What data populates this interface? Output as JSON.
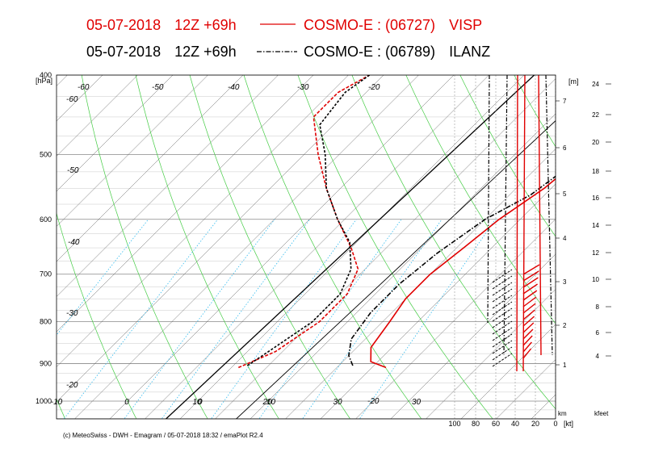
{
  "header": {
    "line1": {
      "date": "05-07-2018",
      "run": "12Z +69h",
      "model": "COSMO-E : (06727)",
      "station": "VISP",
      "color": "#e00000"
    },
    "line2": {
      "date": "05-07-2018",
      "run": "12Z +69h",
      "model": "COSMO-E : (06789)",
      "station": "ILANZ",
      "color": "#000000"
    }
  },
  "footer": {
    "credit": "(c) MeteoSwiss - DWH - Emagram / 05-07-2018  18:32 / emaPlot R2.4"
  },
  "chart_data": {
    "type": "line",
    "chart_kind": "emagram",
    "pressure_unit_label": "[hPa]",
    "pressure_ticks": [
      "400",
      "500",
      "600",
      "700",
      "800",
      "900",
      "1000"
    ],
    "pressure_range": [
      400,
      1030
    ],
    "temp_axis_labels": [
      "-10",
      "0",
      "10",
      "20",
      "30"
    ],
    "skew_temp_labels": [
      "-60",
      "-60",
      "-50",
      "-50",
      "-40",
      "-40",
      "-30",
      "-30",
      "-20",
      "-20",
      "-20",
      "0",
      "10",
      "30"
    ],
    "height_m_label": "[m]",
    "height_m_ticks": [
      "7",
      "6",
      "5",
      "4",
      "3",
      "2",
      "1"
    ],
    "height_kft_ticks": [
      "24",
      "22",
      "20",
      "18",
      "16",
      "14",
      "12",
      "10",
      "8",
      "6",
      "4"
    ],
    "height_km_label": "km",
    "height_kft_label": "kfeet",
    "wind_ticks": [
      "100",
      "80",
      "60",
      "40",
      "20",
      "0"
    ],
    "wind_unit_label": "[kt]",
    "series": [
      {
        "name": "VISP",
        "color": "#e00000",
        "style": "solid",
        "temperature": [
          {
            "p": 910,
            "t": 22
          },
          {
            "p": 895,
            "t": 19
          },
          {
            "p": 860,
            "t": 17
          },
          {
            "p": 800,
            "t": 16
          },
          {
            "p": 750,
            "t": 15
          },
          {
            "p": 700,
            "t": 15
          },
          {
            "p": 650,
            "t": 16
          },
          {
            "p": 600,
            "t": 17
          },
          {
            "p": 550,
            "t": 19
          },
          {
            "p": 500,
            "t": 20
          },
          {
            "p": 450,
            "t": 22
          },
          {
            "p": 400,
            "t": 23
          }
        ],
        "dewpoint": [
          {
            "p": 910,
            "t": 1
          },
          {
            "p": 870,
            "t": 4
          },
          {
            "p": 800,
            "t": 6
          },
          {
            "p": 740,
            "t": 6
          },
          {
            "p": 690,
            "t": 4
          },
          {
            "p": 650,
            "t": 0
          },
          {
            "p": 600,
            "t": -6
          },
          {
            "p": 550,
            "t": -12
          },
          {
            "p": 500,
            "t": -18
          },
          {
            "p": 450,
            "t": -24
          },
          {
            "p": 420,
            "t": -24
          },
          {
            "p": 400,
            "t": -22
          }
        ]
      },
      {
        "name": "ILANZ",
        "color": "#000000",
        "style": "dashdot",
        "temperature": [
          {
            "p": 905,
            "t": 17
          },
          {
            "p": 880,
            "t": 15
          },
          {
            "p": 840,
            "t": 13
          },
          {
            "p": 780,
            "t": 12
          },
          {
            "p": 720,
            "t": 12
          },
          {
            "p": 660,
            "t": 13
          },
          {
            "p": 600,
            "t": 15
          },
          {
            "p": 560,
            "t": 18
          },
          {
            "p": 500,
            "t": 20
          },
          {
            "p": 450,
            "t": 21
          },
          {
            "p": 400,
            "t": 23
          }
        ],
        "dewpoint": [
          {
            "p": 905,
            "t": 2
          },
          {
            "p": 870,
            "t": 3
          },
          {
            "p": 800,
            "t": 5
          },
          {
            "p": 740,
            "t": 5
          },
          {
            "p": 690,
            "t": 3
          },
          {
            "p": 640,
            "t": -1
          },
          {
            "p": 600,
            "t": -6
          },
          {
            "p": 550,
            "t": -12
          },
          {
            "p": 500,
            "t": -17
          },
          {
            "p": 460,
            "t": -22
          },
          {
            "p": 420,
            "t": -23
          },
          {
            "p": 400,
            "t": -22
          }
        ]
      }
    ]
  }
}
